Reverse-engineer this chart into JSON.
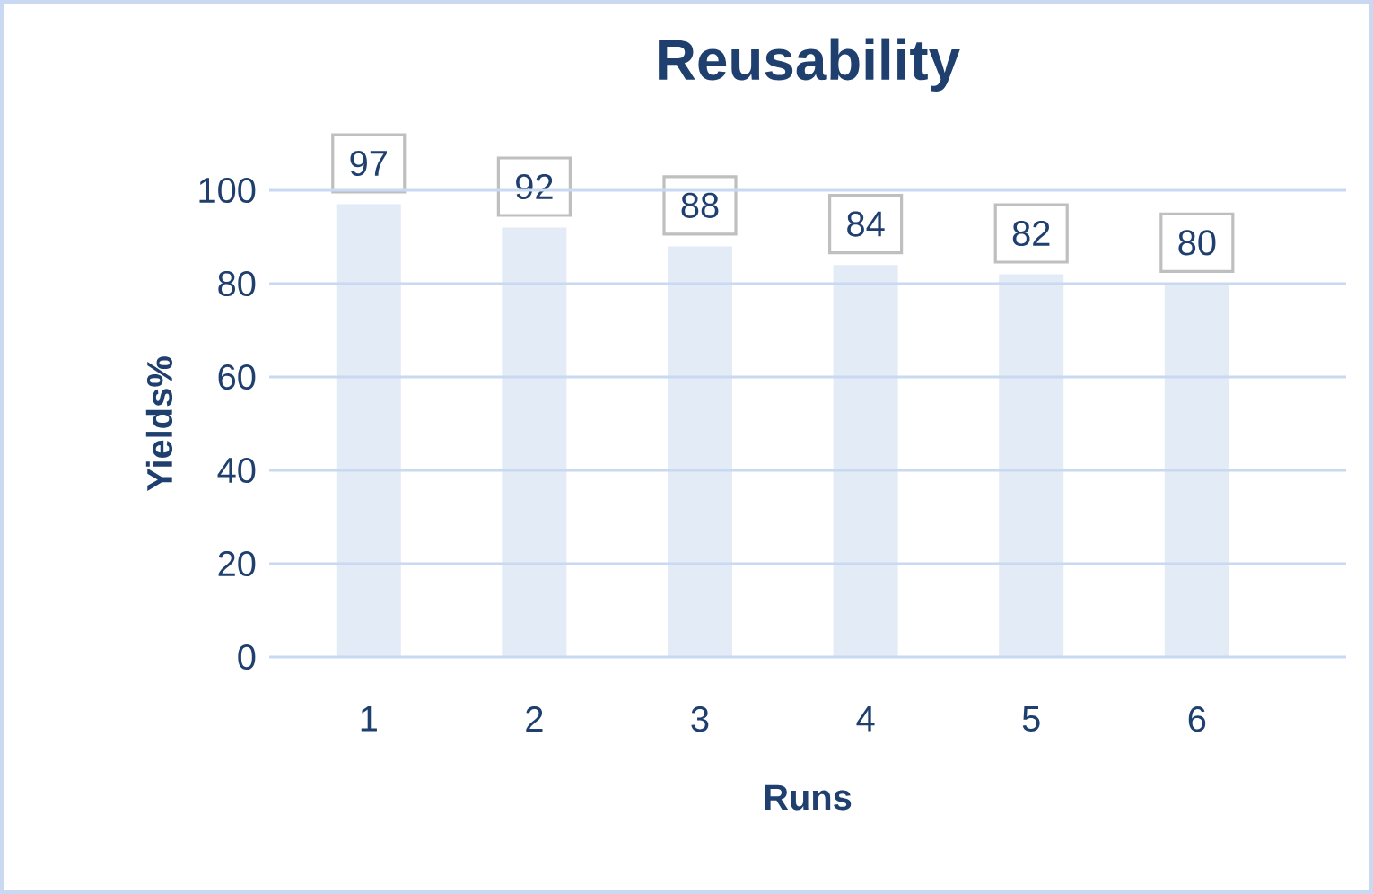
{
  "chart_data": {
    "type": "bar",
    "title": "Reusability",
    "xlabel": "Runs",
    "ylabel": "Yields%",
    "categories": [
      "1",
      "2",
      "3",
      "4",
      "5",
      "6"
    ],
    "values": [
      97,
      92,
      88,
      84,
      82,
      80
    ],
    "color": "#e3ebf7",
    "ylim": [
      0,
      100
    ],
    "yticks": [
      0,
      20,
      40,
      60,
      80,
      100
    ],
    "grid": "y",
    "data_labels": true
  }
}
